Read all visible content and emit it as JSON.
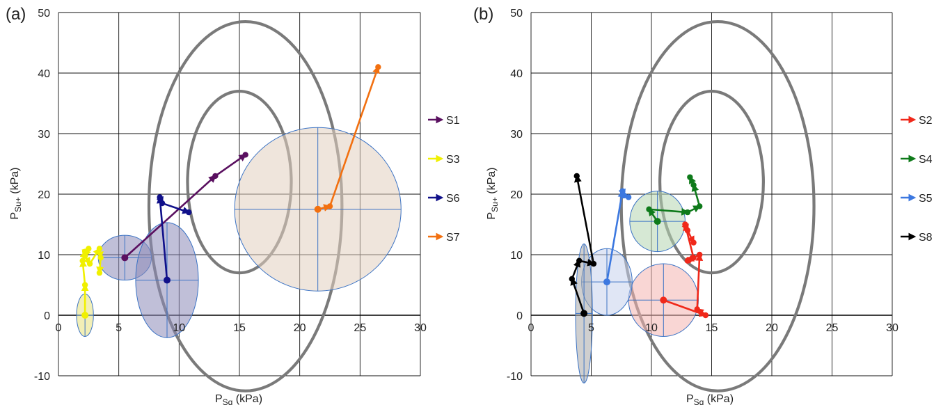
{
  "chart_data": [
    {
      "type": "scatter",
      "panel_label": "(a)",
      "xlabel": "P",
      "xlabel_sub": "Sq",
      "xlabel_unit": " (kPa)",
      "ylabel": "P",
      "ylabel_sub": "Su+",
      "ylabel_unit": " (kPa)",
      "xlim": [
        0,
        30
      ],
      "ylim": [
        -10,
        50
      ],
      "x_ticks": [
        "0",
        "5",
        "10",
        "15",
        "20",
        "25",
        "30"
      ],
      "y_ticks": [
        "-10",
        "0",
        "10",
        "20",
        "30",
        "40",
        "50"
      ],
      "grid": true,
      "legend_position": "right",
      "reference_contours": [
        {
          "cx": 15.5,
          "cy": 18.0,
          "rx": 8.0,
          "ry": 30.5
        },
        {
          "cx": 15.0,
          "cy": 22.0,
          "rx": 4.3,
          "ry": 15.0
        }
      ],
      "series": [
        {
          "name": "S1",
          "color": "#5a1060",
          "x": [
            5.5,
            13.0,
            15.5
          ],
          "y": [
            9.5,
            23.0,
            26.5
          ],
          "ellipse": {
            "cx": 5.5,
            "cy": 9.5,
            "sx": 2.2,
            "sy": 3.7,
            "fill": "#8c8ab8"
          }
        },
        {
          "name": "S3",
          "color": "#f0f000",
          "x": [
            2.2,
            2.2,
            2.0,
            2.2,
            2.5,
            2.2,
            2.6,
            3.4,
            3.5,
            3.4
          ],
          "y": [
            0.0,
            5.0,
            9.0,
            10.5,
            11.0,
            9.8,
            8.5,
            11.0,
            9.5,
            7.0
          ],
          "ellipse": {
            "cx": 2.2,
            "cy": 0.0,
            "sx": 0.7,
            "sy": 3.5,
            "fill": "#e8e27a"
          }
        },
        {
          "name": "S6",
          "color": "#10108a",
          "x": [
            9.0,
            8.4,
            8.6,
            10.8
          ],
          "y": [
            5.8,
            19.5,
            18.5,
            17.0
          ],
          "ellipse": {
            "cx": 9.0,
            "cy": 5.8,
            "sx": 2.6,
            "sy": 9.5,
            "fill": "#8c8ab8"
          }
        },
        {
          "name": "S7",
          "color": "#f27010",
          "x": [
            21.5,
            22.5,
            26.5
          ],
          "y": [
            17.5,
            18.0,
            41.0
          ],
          "ellipse": {
            "cx": 21.5,
            "cy": 17.5,
            "sx": 6.9,
            "sy": 13.5,
            "fill": "#e2cfbf"
          }
        }
      ]
    },
    {
      "type": "scatter",
      "panel_label": "(b)",
      "xlabel": "P",
      "xlabel_sub": "Sq",
      "xlabel_unit": " (kPa)",
      "ylabel": "P",
      "ylabel_sub": "Su+",
      "ylabel_unit": " (kPa)",
      "xlim": [
        0,
        30
      ],
      "ylim": [
        -10,
        50
      ],
      "x_ticks": [
        "0",
        "5",
        "10",
        "15",
        "20",
        "25",
        "30"
      ],
      "y_ticks": [
        "-10",
        "0",
        "10",
        "20",
        "30",
        "40",
        "50"
      ],
      "grid": true,
      "legend_position": "right",
      "reference_contours": [
        {
          "cx": 15.5,
          "cy": 18.0,
          "rx": 8.0,
          "ry": 30.5
        },
        {
          "cx": 15.0,
          "cy": 22.0,
          "rx": 4.3,
          "ry": 15.0
        }
      ],
      "series": [
        {
          "name": "S2",
          "color": "#f0281a",
          "x": [
            11.0,
            14.5,
            13.8,
            14.0,
            13.0,
            13.5,
            12.8,
            13.0,
            13.5
          ],
          "y": [
            2.5,
            0.0,
            1.0,
            10.0,
            9.0,
            9.5,
            15.0,
            14.0,
            12.0
          ],
          "ellipse": {
            "cx": 11.0,
            "cy": 2.5,
            "sx": 2.9,
            "sy": 6.0,
            "fill": "#f4b4b0"
          }
        },
        {
          "name": "S4",
          "color": "#0e7a1a",
          "x": [
            10.5,
            9.8,
            13.0,
            14.0,
            13.5,
            13.2
          ],
          "y": [
            15.5,
            17.5,
            17.0,
            18.0,
            21.5,
            22.8
          ],
          "ellipse": {
            "cx": 10.5,
            "cy": 15.5,
            "sx": 2.3,
            "sy": 5.0,
            "fill": "#b4d6b0"
          }
        },
        {
          "name": "S5",
          "color": "#3c78e0",
          "x": [
            6.3,
            7.6,
            7.7,
            8.1
          ],
          "y": [
            5.5,
            20.5,
            19.8,
            19.5
          ],
          "ellipse": {
            "cx": 6.3,
            "cy": 5.5,
            "sx": 2.1,
            "sy": 5.5,
            "fill": "#c6d2ec"
          }
        },
        {
          "name": "S8",
          "color": "#000000",
          "x": [
            4.4,
            3.4,
            4.0,
            5.2,
            3.8
          ],
          "y": [
            0.3,
            6.0,
            9.0,
            8.5,
            23.0
          ],
          "ellipse": {
            "cx": 4.4,
            "cy": 0.3,
            "sx": 0.7,
            "sy": 11.5,
            "fill": "#a8a8a8"
          }
        }
      ]
    }
  ]
}
